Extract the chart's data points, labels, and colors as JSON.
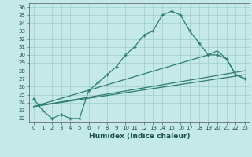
{
  "title": "",
  "xlabel": "Humidex (Indice chaleur)",
  "background_color": "#c5e8e8",
  "line_color": "#2e7d6e",
  "marker": "+",
  "marker_size": 3.5,
  "marker_lw": 1.0,
  "xlim": [
    -0.5,
    23.5
  ],
  "ylim": [
    21.5,
    36.5
  ],
  "yticks": [
    22,
    23,
    24,
    25,
    26,
    27,
    28,
    29,
    30,
    31,
    32,
    33,
    34,
    35,
    36
  ],
  "xticks": [
    0,
    1,
    2,
    3,
    4,
    5,
    6,
    7,
    8,
    9,
    10,
    11,
    12,
    13,
    14,
    15,
    16,
    17,
    18,
    19,
    20,
    21,
    22,
    23
  ],
  "line1_x": [
    0,
    1,
    2,
    3,
    4,
    5,
    6,
    7,
    8,
    9,
    10,
    11,
    12,
    13,
    14,
    15,
    16,
    17,
    18,
    19,
    20,
    21,
    22,
    23
  ],
  "line1_y": [
    24.5,
    23.0,
    22.0,
    22.5,
    22.0,
    22.0,
    25.5,
    26.5,
    27.5,
    28.5,
    30.0,
    31.0,
    32.5,
    33.0,
    35.0,
    35.5,
    35.0,
    33.0,
    31.5,
    30.0,
    30.0,
    29.5,
    27.5,
    27.0
  ],
  "line2_x": [
    0,
    23
  ],
  "line2_y": [
    23.5,
    27.5
  ],
  "line3_x": [
    0,
    23
  ],
  "line3_y": [
    23.5,
    28.0
  ],
  "line4_x": [
    0,
    19,
    20,
    21,
    22,
    23
  ],
  "line4_y": [
    23.5,
    30.0,
    30.5,
    29.5,
    27.5,
    27.0
  ],
  "grid_color": "#9ecece",
  "fontsize_tick": 5.0,
  "fontsize_label": 6.5,
  "lw": 0.9
}
